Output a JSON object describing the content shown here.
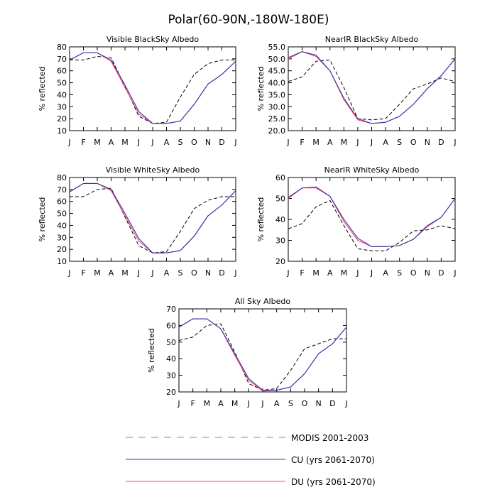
{
  "figure_title": "Polar(60-90N,-180W-180E)",
  "colors": {
    "modis": "#000000",
    "cu": "#3333aa",
    "du": "#ff4466"
  },
  "legend": [
    {
      "key": "modis",
      "label": "MODIS 2001-2003",
      "style": "dashed"
    },
    {
      "key": "cu",
      "label": "CU (yrs 2061-2070)",
      "style": "solid"
    },
    {
      "key": "du",
      "label": "DU (yrs 2061-2070)",
      "style": "solid"
    }
  ],
  "chart_data": [
    {
      "type": "line",
      "title": "Visible BlackSky Albedo",
      "ylabel": "% reflected",
      "categories": [
        "J",
        "F",
        "M",
        "A",
        "M",
        "J",
        "J",
        "A",
        "S",
        "O",
        "N",
        "D",
        "J"
      ],
      "ylim": [
        10,
        80
      ],
      "yticks": [
        "10",
        "20",
        "30",
        "40",
        "50",
        "60",
        "70",
        "80"
      ],
      "series": [
        {
          "name": "MODIS 2001-2003",
          "key": "modis",
          "values": [
            69,
            69,
            72,
            71,
            47,
            22,
            16,
            17,
            38,
            57,
            66,
            69,
            69
          ]
        },
        {
          "name": "CU (yrs 2061-2070)",
          "key": "cu",
          "values": [
            69,
            75,
            75,
            69,
            48,
            26,
            16,
            16,
            18,
            32,
            49,
            57,
            68
          ]
        },
        {
          "name": "DU (yrs 2061-2070)",
          "key": "du",
          "values": [
            69,
            75,
            75,
            68,
            46,
            24,
            16,
            16,
            18,
            32,
            49,
            57,
            68
          ]
        }
      ]
    },
    {
      "type": "line",
      "title": "NearIR BlackSky Albedo",
      "ylabel": "% reflected",
      "categories": [
        "J",
        "F",
        "M",
        "A",
        "M",
        "J",
        "J",
        "A",
        "S",
        "O",
        "N",
        "D",
        "J"
      ],
      "ylim": [
        20,
        55
      ],
      "yticks": [
        "20.0",
        "25.0",
        "30.0",
        "35.0",
        "40.0",
        "45.0",
        "50.0",
        "55.0"
      ],
      "series": [
        {
          "name": "MODIS 2001-2003",
          "key": "modis",
          "values": [
            40.5,
            42.5,
            49,
            49.5,
            38,
            25,
            24.5,
            25,
            31,
            37.5,
            39.5,
            42,
            40.5
          ]
        },
        {
          "name": "CU (yrs 2061-2070)",
          "key": "cu",
          "values": [
            50.5,
            53,
            51.5,
            45,
            33.5,
            25,
            23,
            23.5,
            26,
            31,
            37.5,
            43,
            50
          ]
        },
        {
          "name": "DU (yrs 2061-2070)",
          "key": "du",
          "values": [
            50,
            53,
            51,
            45,
            33,
            24.5,
            23,
            23.5,
            26,
            31,
            37.5,
            43,
            50
          ]
        }
      ]
    },
    {
      "type": "line",
      "title": "Visible WhiteSky Albedo",
      "ylabel": "% reflected",
      "categories": [
        "J",
        "F",
        "M",
        "A",
        "M",
        "J",
        "J",
        "A",
        "S",
        "O",
        "N",
        "D",
        "J"
      ],
      "ylim": [
        10,
        80
      ],
      "yticks": [
        "10",
        "20",
        "30",
        "40",
        "50",
        "60",
        "70",
        "80"
      ],
      "series": [
        {
          "name": "MODIS 2001-2003",
          "key": "modis",
          "values": [
            64,
            64,
            70,
            71,
            47,
            23,
            17,
            18,
            35,
            54,
            61,
            64,
            64
          ]
        },
        {
          "name": "CU (yrs 2061-2070)",
          "key": "cu",
          "values": [
            68,
            75,
            75,
            70,
            50,
            29,
            17,
            17,
            19,
            31,
            48,
            57,
            69
          ]
        },
        {
          "name": "DU (yrs 2061-2070)",
          "key": "du",
          "values": [
            68,
            75,
            75,
            69,
            48,
            27,
            17,
            17,
            19,
            31,
            48,
            57,
            69
          ]
        }
      ]
    },
    {
      "type": "line",
      "title": "NearIR WhiteSky Albedo",
      "ylabel": "% reflected",
      "categories": [
        "J",
        "F",
        "M",
        "A",
        "M",
        "J",
        "J",
        "A",
        "S",
        "O",
        "N",
        "D",
        "J"
      ],
      "ylim": [
        20,
        60
      ],
      "yticks": [
        "20",
        "30",
        "40",
        "50",
        "60"
      ],
      "series": [
        {
          "name": "MODIS 2001-2003",
          "key": "modis",
          "values": [
            35.5,
            38,
            46,
            49,
            37,
            26,
            25,
            25,
            29,
            34.5,
            35,
            37,
            35.5
          ]
        },
        {
          "name": "CU (yrs 2061-2070)",
          "key": "cu",
          "values": [
            50.5,
            55,
            55.5,
            51,
            40,
            31,
            27,
            27,
            27.5,
            30.5,
            37,
            41,
            50
          ]
        },
        {
          "name": "DU (yrs 2061-2070)",
          "key": "du",
          "values": [
            50,
            55,
            55,
            51,
            39,
            30,
            27,
            27,
            27.5,
            30.5,
            36.5,
            41,
            50
          ]
        }
      ]
    },
    {
      "type": "line",
      "title": "All Sky Albedo",
      "ylabel": "% reflected",
      "categories": [
        "J",
        "F",
        "M",
        "A",
        "M",
        "J",
        "J",
        "A",
        "S",
        "O",
        "N",
        "D",
        "J"
      ],
      "ylim": [
        20,
        70
      ],
      "yticks": [
        "20",
        "30",
        "40",
        "50",
        "60",
        "70"
      ],
      "series": [
        {
          "name": "MODIS 2001-2003",
          "key": "modis",
          "values": [
            51,
            53,
            60,
            61,
            44,
            25,
            21,
            22,
            33,
            46,
            49,
            52,
            52
          ]
        },
        {
          "name": "CU (yrs 2061-2070)",
          "key": "cu",
          "values": [
            59,
            64,
            64,
            58,
            43,
            28,
            21,
            21,
            23,
            31,
            43,
            49,
            59
          ]
        },
        {
          "name": "DU (yrs 2061-2070)",
          "key": "du",
          "values": [
            59,
            64,
            64,
            58,
            42,
            27,
            20.5,
            21,
            23,
            31,
            43,
            49,
            59
          ]
        }
      ]
    }
  ]
}
